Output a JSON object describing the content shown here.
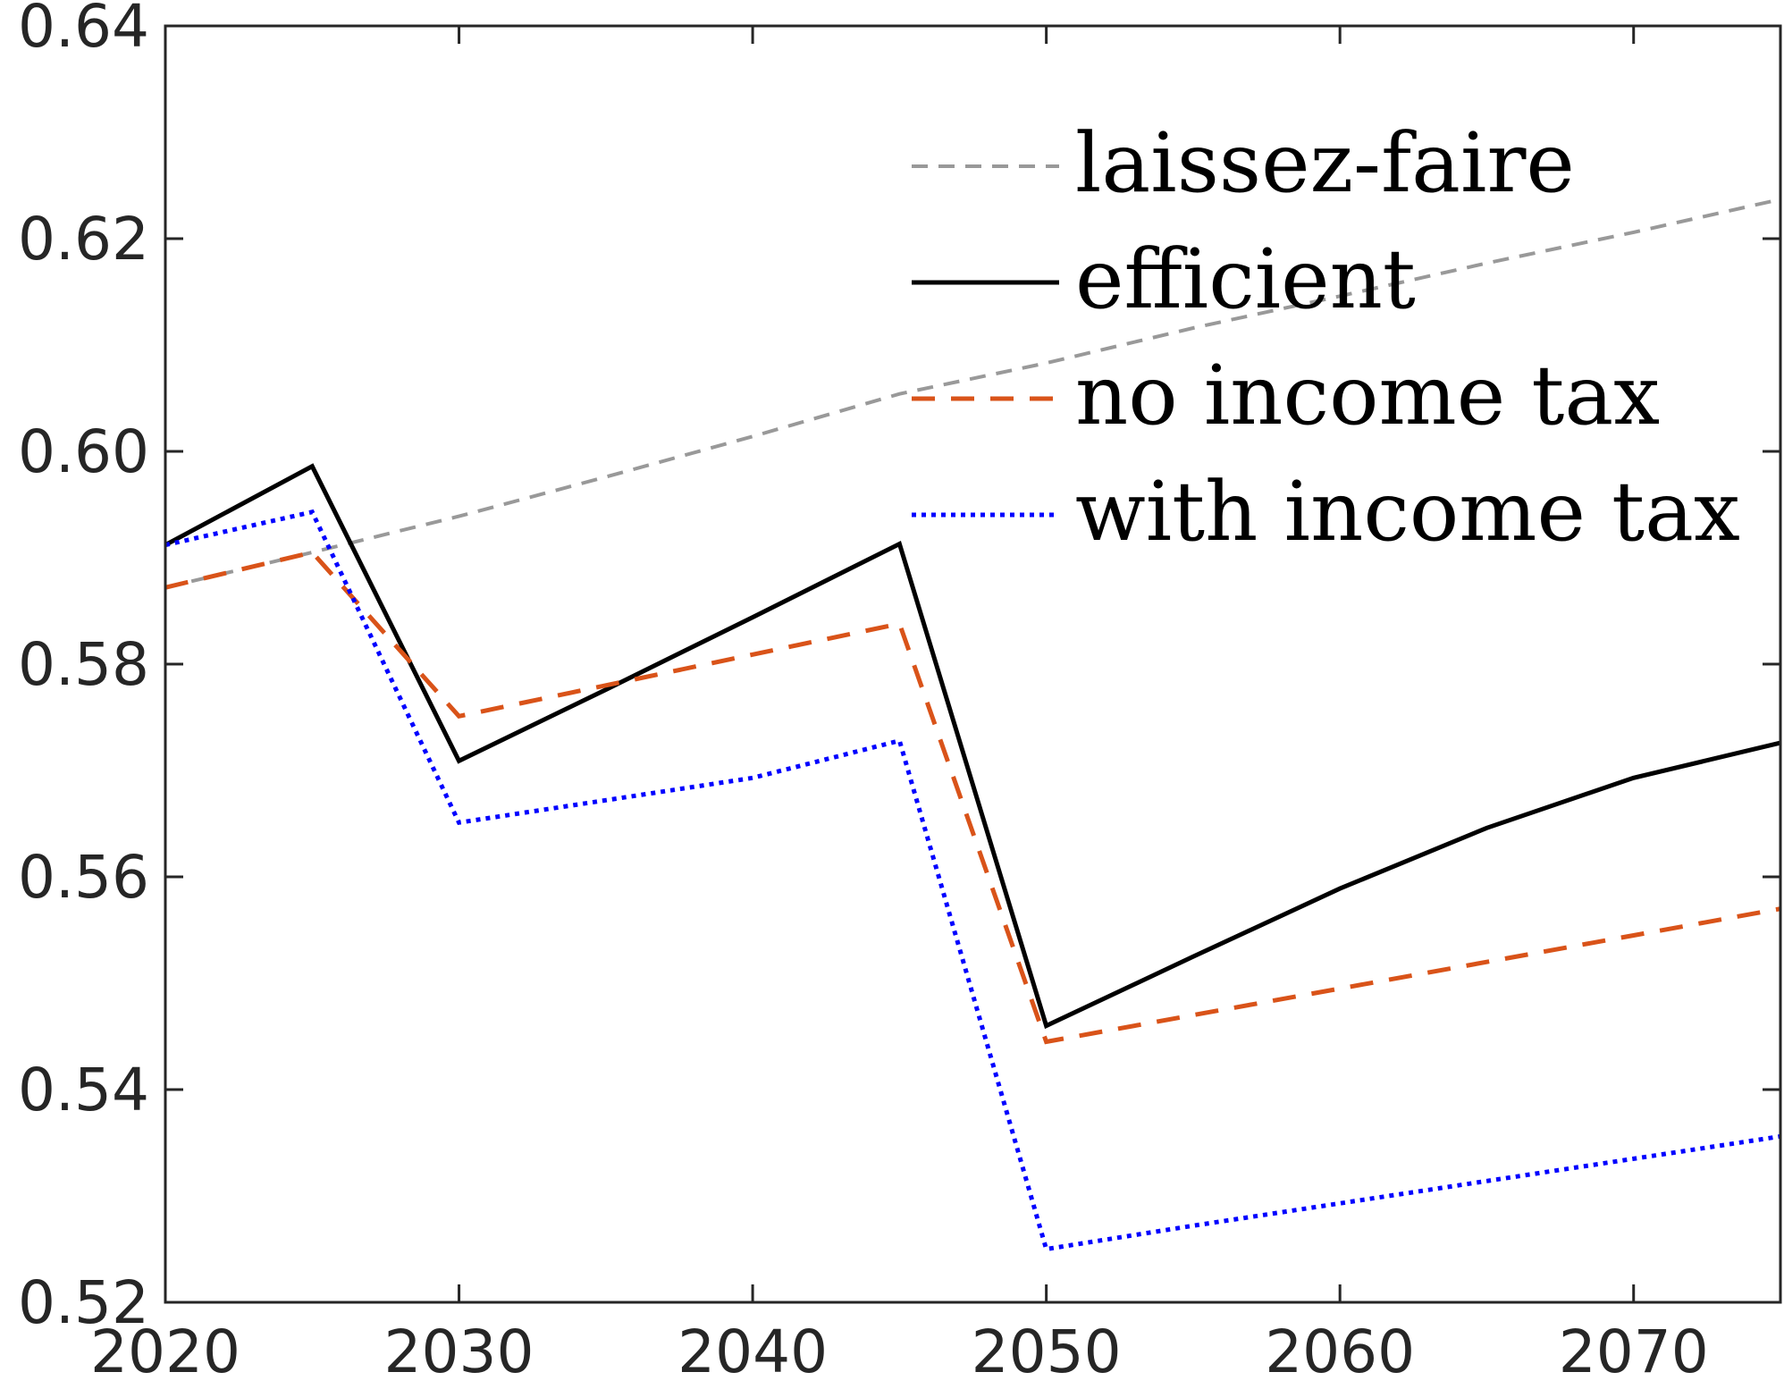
{
  "chart_data": {
    "type": "line",
    "title": "",
    "xlabel": "",
    "ylabel": "",
    "xlim": [
      2020,
      2075
    ],
    "ylim": [
      0.52,
      0.64
    ],
    "xticks": [
      2020,
      2030,
      2040,
      2050,
      2060,
      2070
    ],
    "xtick_labels": [
      "2020",
      "2030",
      "2040",
      "2050",
      "2060",
      "2070"
    ],
    "yticks": [
      0.52,
      0.54,
      0.56,
      0.58,
      0.6,
      0.62,
      0.64
    ],
    "ytick_labels": [
      "0.52",
      "0.54",
      "0.56",
      "0.58",
      "0.60",
      "0.62",
      "0.64"
    ],
    "grid": false,
    "legend_position": "top-right",
    "x": [
      2020,
      2025,
      2030,
      2035,
      2040,
      2045,
      2050,
      2055,
      2060,
      2065,
      2070,
      2075
    ],
    "series": [
      {
        "name": "laissez-faire",
        "color": "#999999",
        "style": "dashed-thin",
        "values": [
          0.5872,
          0.5905,
          0.5939,
          0.5976,
          0.6014,
          0.6054,
          0.6083,
          0.6116,
          0.6146,
          0.6177,
          0.6206,
          0.6237
        ]
      },
      {
        "name": "efficient",
        "color": "#000000",
        "style": "solid",
        "values": [
          0.5912,
          0.5986,
          0.5709,
          0.5776,
          0.5844,
          0.5913,
          0.546,
          0.5525,
          0.5589,
          0.5646,
          0.5693,
          0.5726
        ]
      },
      {
        "name": "no income tax",
        "color": "#D95319",
        "style": "dashed",
        "values": [
          0.5872,
          0.5905,
          0.5751,
          0.578,
          0.5809,
          0.5838,
          0.5445,
          0.547,
          0.5495,
          0.552,
          0.5545,
          0.557
        ]
      },
      {
        "name": "with income tax",
        "color": "#0000FF",
        "style": "dotted",
        "values": [
          0.5912,
          0.5943,
          0.5651,
          0.5672,
          0.5693,
          0.5728,
          0.525,
          0.5272,
          0.5293,
          0.5314,
          0.5335,
          0.5356
        ]
      }
    ]
  }
}
